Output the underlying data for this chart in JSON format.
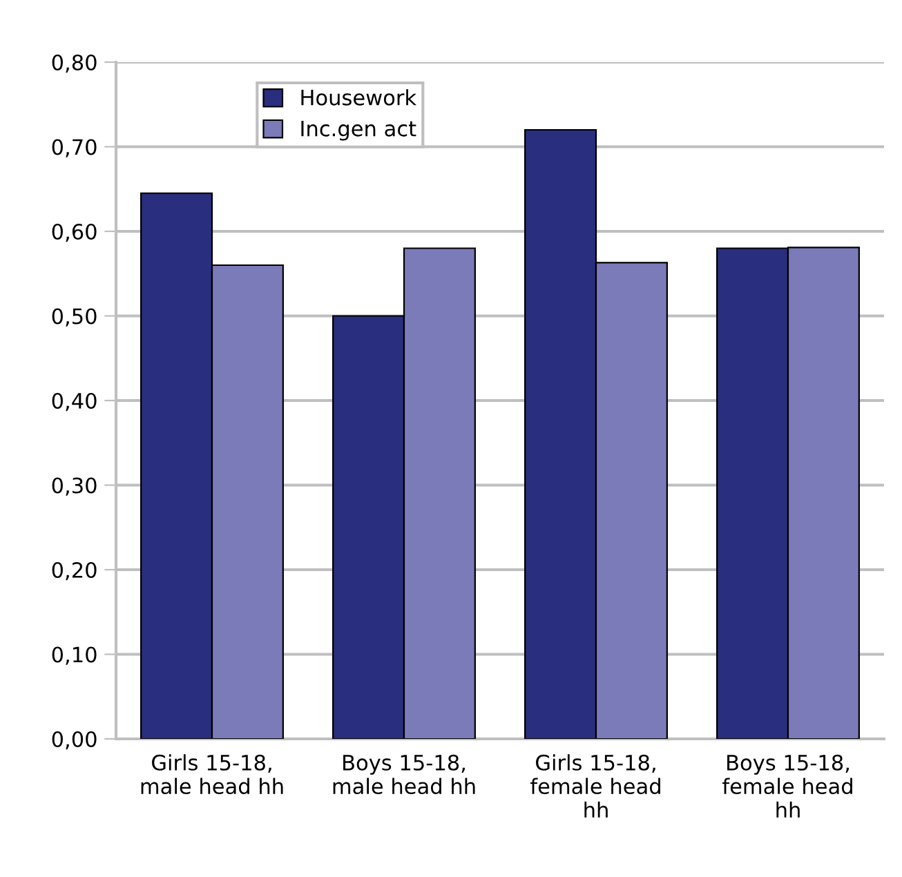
{
  "chart_data": {
    "type": "bar",
    "categories": [
      "Girls 15-18,\nmale head hh",
      "Boys 15-18,\nmale head hh",
      "Girls 15-18,\nfemale head\nhh",
      "Boys 15-18,\nfemale head\nhh"
    ],
    "series": [
      {
        "name": "Housework",
        "color": "#2a2e7e",
        "values": [
          0.645,
          0.5,
          0.72,
          0.58
        ]
      },
      {
        "name": "Inc.gen act",
        "color": "#7b7bba",
        "values": [
          0.56,
          0.58,
          0.563,
          0.581
        ]
      }
    ],
    "ylim": [
      0,
      0.8
    ],
    "yticks": [
      {
        "value": 0,
        "label": "0,00"
      },
      {
        "value": 0.1,
        "label": "0,10"
      },
      {
        "value": 0.2,
        "label": "0,20"
      },
      {
        "value": 0.3,
        "label": "0,30"
      },
      {
        "value": 0.4,
        "label": "0,40"
      },
      {
        "value": 0.5,
        "label": "0,50"
      },
      {
        "value": 0.6,
        "label": "0,60"
      },
      {
        "value": 0.7,
        "label": "0,70"
      },
      {
        "value": 0.8,
        "label": "0,80"
      }
    ],
    "grid": "y",
    "legend": "top left"
  }
}
